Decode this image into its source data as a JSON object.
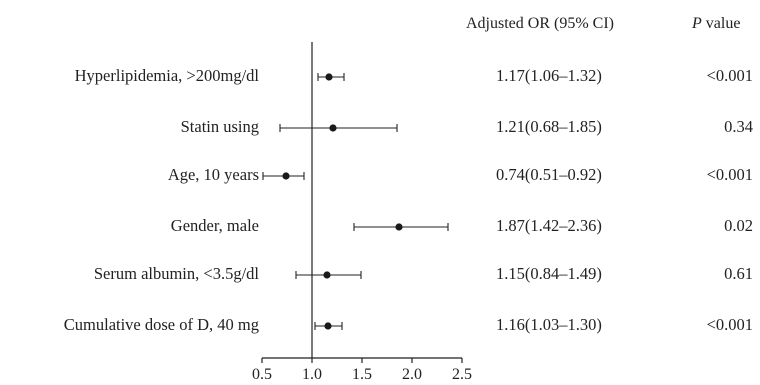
{
  "chart_data": {
    "type": "forest",
    "title": "",
    "xlabel": "",
    "columns": {
      "estimate_header": "Adjusted OR (95% CI)",
      "p_header_italic": "P",
      "p_header_rest": " value"
    },
    "reference_line": 1.0,
    "xlim": [
      0.5,
      2.5
    ],
    "xticks": [
      "0.5",
      "1.0",
      "1.5",
      "2.0",
      "2.5"
    ],
    "xtick_values": [
      0.5,
      1.0,
      1.5,
      2.0,
      2.5
    ],
    "rows": [
      {
        "label": "Hyperlipidemia, >200mg/dl",
        "or": 1.17,
        "lo": 1.06,
        "hi": 1.32,
        "or_text": "1.17(1.06–1.32)",
        "p": "<0.001"
      },
      {
        "label": "Statin using",
        "or": 1.21,
        "lo": 0.68,
        "hi": 1.85,
        "or_text": "1.21(0.68–1.85)",
        "p": "0.34"
      },
      {
        "label": "Age, 10 years",
        "or": 0.74,
        "lo": 0.51,
        "hi": 0.92,
        "or_text": "0.74(0.51–0.92)",
        "p": "<0.001"
      },
      {
        "label": "Gender, male",
        "or": 1.87,
        "lo": 1.42,
        "hi": 2.36,
        "or_text": "1.87(1.42–2.36)",
        "p": "0.02"
      },
      {
        "label": "Serum albumin, <3.5g/dl",
        "or": 1.15,
        "lo": 0.84,
        "hi": 1.49,
        "or_text": "1.15(0.84–1.49)",
        "p": "0.61"
      },
      {
        "label": "Cumulative dose of D, 40 mg",
        "or": 1.16,
        "lo": 1.03,
        "hi": 1.3,
        "or_text": "1.16(1.03–1.30)",
        "p": "<0.001"
      }
    ]
  }
}
